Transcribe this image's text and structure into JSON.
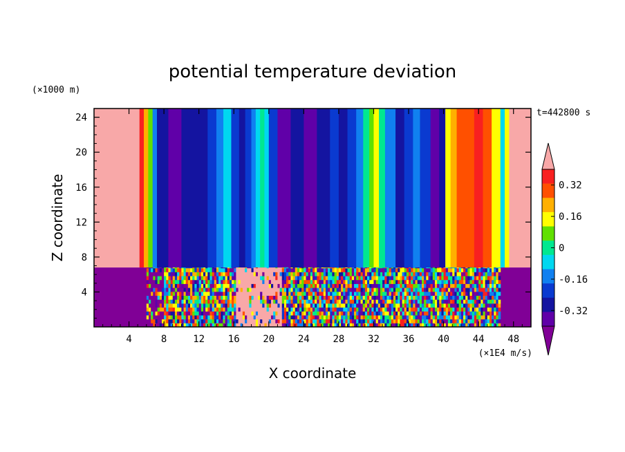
{
  "chart_data": {
    "type": "heatmap",
    "title": "potential temperature deviation",
    "xlabel": "X coordinate",
    "ylabel": "Z coordinate",
    "x_unit": "(×1E4 m/s)",
    "y_unit": "(×1000 m)",
    "time_label": "t=442800 s",
    "xlim": [
      0,
      50
    ],
    "ylim": [
      0,
      25
    ],
    "x_ticks": [
      "4",
      "8",
      "12",
      "16",
      "20",
      "24",
      "28",
      "32",
      "36",
      "40",
      "44",
      "48"
    ],
    "y_ticks": [
      "4",
      "8",
      "12",
      "16",
      "20",
      "24"
    ],
    "colorbar": {
      "labels": [
        "0.32",
        "0.16",
        "0",
        "-0.16",
        "-0.32"
      ],
      "levels": [
        -0.4,
        -0.32,
        -0.24,
        -0.16,
        -0.08,
        0,
        0.08,
        0.16,
        0.24,
        0.32,
        0.4
      ],
      "colors": [
        "#800096",
        "#6000a8",
        "#1414a0",
        "#0a3ad0",
        "#1080f0",
        "#00d8f0",
        "#00e890",
        "#60e000",
        "#ffff00",
        "#ffb000",
        "#ff5000",
        "#f82020",
        "#f8a8a8"
      ]
    },
    "upper_layer_columns": [
      {
        "x": 0,
        "level": 12
      },
      {
        "x": 4.6,
        "level": 12
      },
      {
        "x": 5.2,
        "level": 11
      },
      {
        "x": 5.7,
        "level": 9
      },
      {
        "x": 6.2,
        "level": 7
      },
      {
        "x": 6.7,
        "level": 4
      },
      {
        "x": 7.2,
        "level": 2
      },
      {
        "x": 8.5,
        "level": 1
      },
      {
        "x": 10.0,
        "level": 2
      },
      {
        "x": 11.5,
        "level": 2
      },
      {
        "x": 13.0,
        "level": 3
      },
      {
        "x": 14.0,
        "level": 4
      },
      {
        "x": 14.8,
        "level": 5
      },
      {
        "x": 15.7,
        "level": 3
      },
      {
        "x": 16.6,
        "level": 2
      },
      {
        "x": 17.3,
        "level": 3
      },
      {
        "x": 18.0,
        "level": 4
      },
      {
        "x": 18.5,
        "level": 5
      },
      {
        "x": 19.0,
        "level": 6
      },
      {
        "x": 19.5,
        "level": 5
      },
      {
        "x": 20.0,
        "level": 3
      },
      {
        "x": 21.0,
        "level": 1
      },
      {
        "x": 22.5,
        "level": 2
      },
      {
        "x": 24.0,
        "level": 1
      },
      {
        "x": 25.5,
        "level": 2
      },
      {
        "x": 27.0,
        "level": 3
      },
      {
        "x": 28.0,
        "level": 2
      },
      {
        "x": 29.0,
        "level": 3
      },
      {
        "x": 30.0,
        "level": 4
      },
      {
        "x": 30.8,
        "level": 6
      },
      {
        "x": 31.5,
        "level": 7
      },
      {
        "x": 32.0,
        "level": 8
      },
      {
        "x": 32.6,
        "level": 6
      },
      {
        "x": 33.3,
        "level": 4
      },
      {
        "x": 34.5,
        "level": 2
      },
      {
        "x": 35.5,
        "level": 3
      },
      {
        "x": 36.5,
        "level": 4
      },
      {
        "x": 37.3,
        "level": 3
      },
      {
        "x": 38.5,
        "level": 1
      },
      {
        "x": 39.5,
        "level": 2
      },
      {
        "x": 40.2,
        "level": 8
      },
      {
        "x": 40.8,
        "level": 9
      },
      {
        "x": 41.5,
        "level": 10
      },
      {
        "x": 42.5,
        "level": 10
      },
      {
        "x": 43.5,
        "level": 11
      },
      {
        "x": 44.5,
        "level": 10
      },
      {
        "x": 45.5,
        "level": 8
      },
      {
        "x": 46.5,
        "level": 5
      },
      {
        "x": 47.0,
        "level": 8
      },
      {
        "x": 47.5,
        "level": 12
      },
      {
        "x": 50.0,
        "level": 12
      }
    ],
    "upper_bottom_z": 6.8,
    "lower_layer": {
      "background_level": 0,
      "chaotic_x_range": [
        6,
        46.5
      ],
      "warm_blob_x_range": [
        16,
        21.5
      ],
      "warm_blob_level": 12
    }
  }
}
